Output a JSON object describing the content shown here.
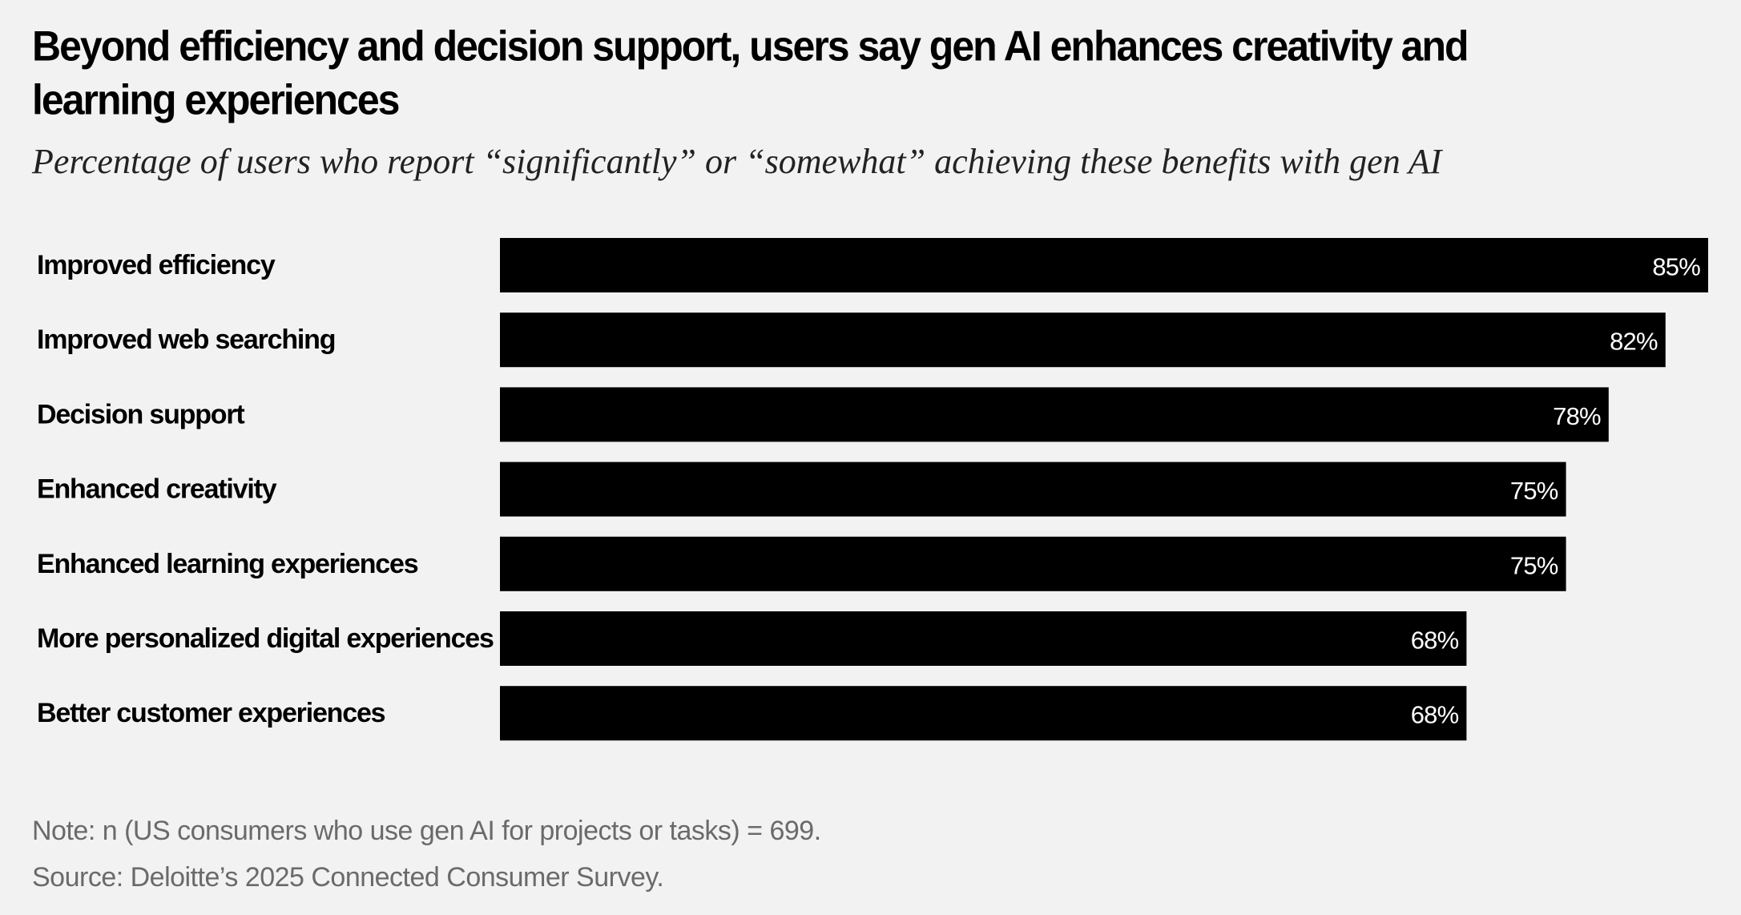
{
  "header": {
    "title": "Beyond efficiency and decision support, users say gen AI enhances creativity and learning experiences",
    "subtitle": "Percentage of users who report “significantly” or “somewhat” achieving these benefits with gen AI"
  },
  "chart_data": {
    "type": "bar",
    "orientation": "horizontal",
    "categories": [
      "Improved efficiency",
      "Improved web searching",
      "Decision support",
      "Enhanced creativity",
      "Enhanced learning experiences",
      "More personalized digital experiences",
      "Better customer experiences"
    ],
    "values": [
      85,
      82,
      78,
      75,
      75,
      68,
      68
    ],
    "value_labels": [
      "85%",
      "82%",
      "78%",
      "75%",
      "75%",
      "68%",
      "68%"
    ],
    "title": "Beyond efficiency and decision support, users say gen AI enhances creativity and learning experiences",
    "xlabel": "",
    "ylabel": "",
    "grid": false,
    "bar_color": "#000000",
    "label_color": "#ffffff"
  },
  "footer": {
    "note": "Note: n (US consumers who use gen AI for projects or tasks) = 699.",
    "source": "Source: Deloitte’s 2025 Connected Consumer Survey."
  }
}
